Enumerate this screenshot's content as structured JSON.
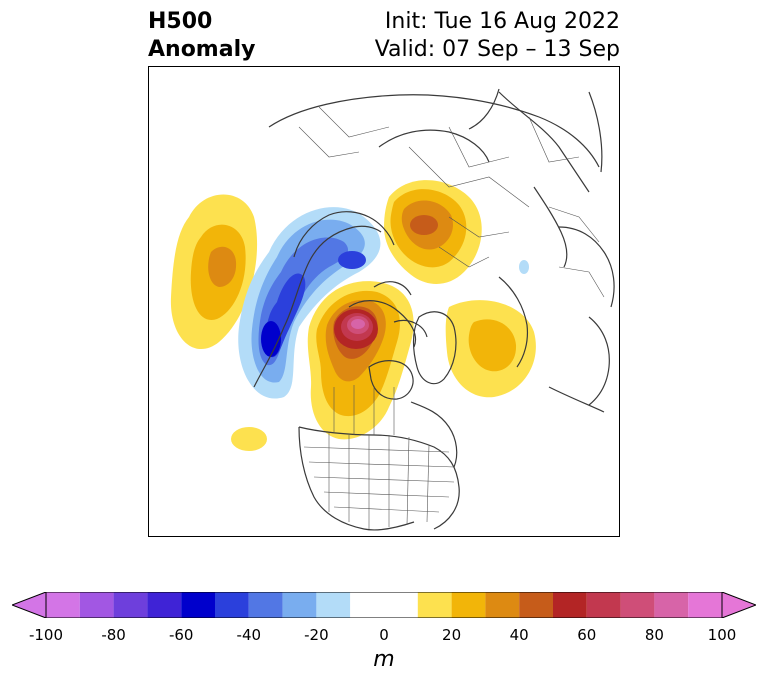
{
  "title": {
    "line1": "H500",
    "line2": "Anomaly"
  },
  "dates": {
    "init": "Init: Tue 16 Aug 2022",
    "valid": "Valid: 07 Sep – 13 Sep"
  },
  "colorbar": {
    "unit": "m",
    "min": -100,
    "max": 100,
    "ticks": [
      "-100",
      "-80",
      "-60",
      "-40",
      "-20",
      "0",
      "20",
      "40",
      "60",
      "80",
      "100"
    ],
    "extend": "both",
    "bins": [
      {
        "from": -100,
        "to": -90,
        "color": "#d375e6"
      },
      {
        "from": -90,
        "to": -80,
        "color": "#a257e3"
      },
      {
        "from": -80,
        "to": -70,
        "color": "#6e3fdc"
      },
      {
        "from": -70,
        "to": -60,
        "color": "#3f23d6"
      },
      {
        "from": -60,
        "to": -50,
        "color": "#0000cc"
      },
      {
        "from": -50,
        "to": -40,
        "color": "#2b40dc"
      },
      {
        "from": -40,
        "to": -30,
        "color": "#5277e4"
      },
      {
        "from": -30,
        "to": -20,
        "color": "#79adef"
      },
      {
        "from": -20,
        "to": -10,
        "color": "#b3dcf8"
      },
      {
        "from": -10,
        "to": 10,
        "color": "#ffffff"
      },
      {
        "from": 10,
        "to": 20,
        "color": "#fde14f"
      },
      {
        "from": 20,
        "to": 30,
        "color": "#f2b509"
      },
      {
        "from": 30,
        "to": 40,
        "color": "#dd8a12"
      },
      {
        "from": 40,
        "to": 50,
        "color": "#c65c1a"
      },
      {
        "from": 50,
        "to": 60,
        "color": "#b32525"
      },
      {
        "from": 60,
        "to": 70,
        "color": "#c2384f"
      },
      {
        "from": 70,
        "to": 80,
        "color": "#cf4e78"
      },
      {
        "from": 80,
        "to": 90,
        "color": "#d764a8"
      },
      {
        "from": 90,
        "to": 100,
        "color": "#e576d7"
      }
    ],
    "under_color": "#d375e6",
    "over_color": "#e576d7"
  },
  "map": {
    "projection": "north-polar-stereographic",
    "region": "Northern Hemisphere (North America / Arctic / Eurasia)",
    "features": {
      "ridge_alaska_yukon": "+50 to +70 m",
      "ridge_siberia": "+30 to +40 m",
      "ridge_north_atlantic": "+20 to +30 m",
      "trough_pacific": "-50 to -60 m",
      "ridge_bering": "+30 m"
    }
  }
}
